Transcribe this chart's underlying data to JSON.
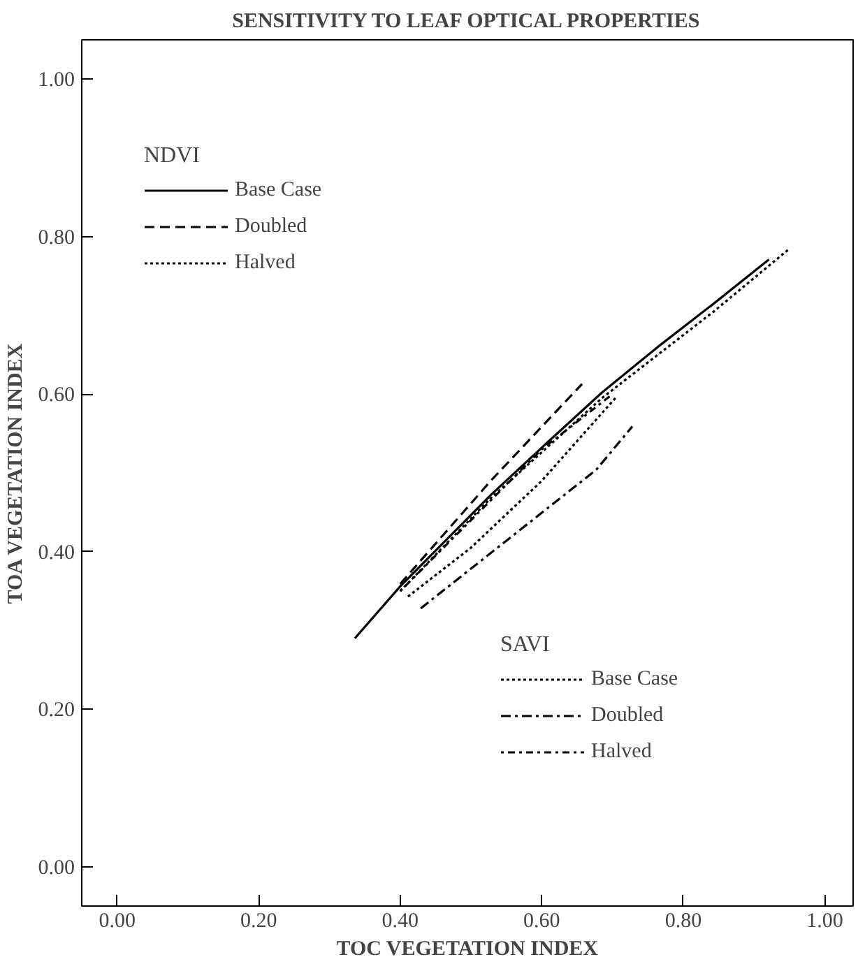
{
  "chart_data": {
    "type": "line",
    "title": "SENSITIVITY TO LEAF OPTICAL PROPERTIES",
    "xlabel": "TOC VEGETATION INDEX",
    "ylabel": "TOA VEGETATION INDEX",
    "legend_title": [
      "NDVI",
      "SAVI"
    ],
    "legend": "top left",
    "xlim": [
      -0.05,
      1.04
    ],
    "ylim": [
      -0.05,
      1.05
    ],
    "xticks": [
      {
        "value": 0,
        "label": "0.00"
      },
      {
        "value": 0.2,
        "label": "0.20"
      },
      {
        "value": 0.4,
        "label": "0.40"
      },
      {
        "value": 0.6,
        "label": "0.60"
      },
      {
        "value": 0.8,
        "label": "0.80"
      },
      {
        "value": 1.0,
        "label": "1.00"
      }
    ],
    "yticks": [
      {
        "value": 0,
        "label": "0.00"
      },
      {
        "value": 0.2,
        "label": "0.20"
      },
      {
        "value": 0.4,
        "label": "0.40"
      },
      {
        "value": 0.6,
        "label": "0.60"
      },
      {
        "value": 0.8,
        "label": "0.80"
      },
      {
        "value": 1.0,
        "label": "1.00"
      }
    ],
    "series": [
      {
        "name": "Base Case",
        "color": "#000000",
        "line_style": "solid",
        "x": [
          0.336,
          0.4,
          0.528,
          0.606,
          0.685,
          0.764,
          0.843,
          0.921
        ],
        "values": [
          0.29,
          0.356,
          0.472,
          0.537,
          0.602,
          0.66,
          0.715,
          0.771
        ]
      },
      {
        "name": "Doubled",
        "color": "#000000",
        "line_style": "dashed",
        "x": [
          0.4,
          0.528,
          0.657
        ],
        "values": [
          0.359,
          0.49,
          0.613
        ]
      },
      {
        "name": "Halved",
        "color": "#000000",
        "line_style": "dotted",
        "x": [
          0.4,
          0.528,
          0.685,
          0.843,
          0.949
        ],
        "values": [
          0.35,
          0.468,
          0.595,
          0.705,
          0.784
        ]
      },
      {
        "name": "Base Case",
        "color": "#000000",
        "line_style": "dotted",
        "x": [
          0.411,
          0.5,
          0.6,
          0.706
        ],
        "values": [
          0.343,
          0.405,
          0.49,
          0.597
        ]
      },
      {
        "name": "Doubled",
        "color": "#000000",
        "line_style": "dashdot",
        "x": [
          0.429,
          0.591,
          0.677,
          0.728
        ],
        "values": [
          0.328,
          0.443,
          0.504,
          0.559
        ]
      },
      {
        "name": "Halved",
        "color": "#000000",
        "line_style": "dotdash",
        "x": [
          0.4,
          0.5,
          0.6,
          0.7
        ],
        "values": [
          0.35,
          0.44,
          0.53,
          0.6
        ]
      }
    ]
  }
}
